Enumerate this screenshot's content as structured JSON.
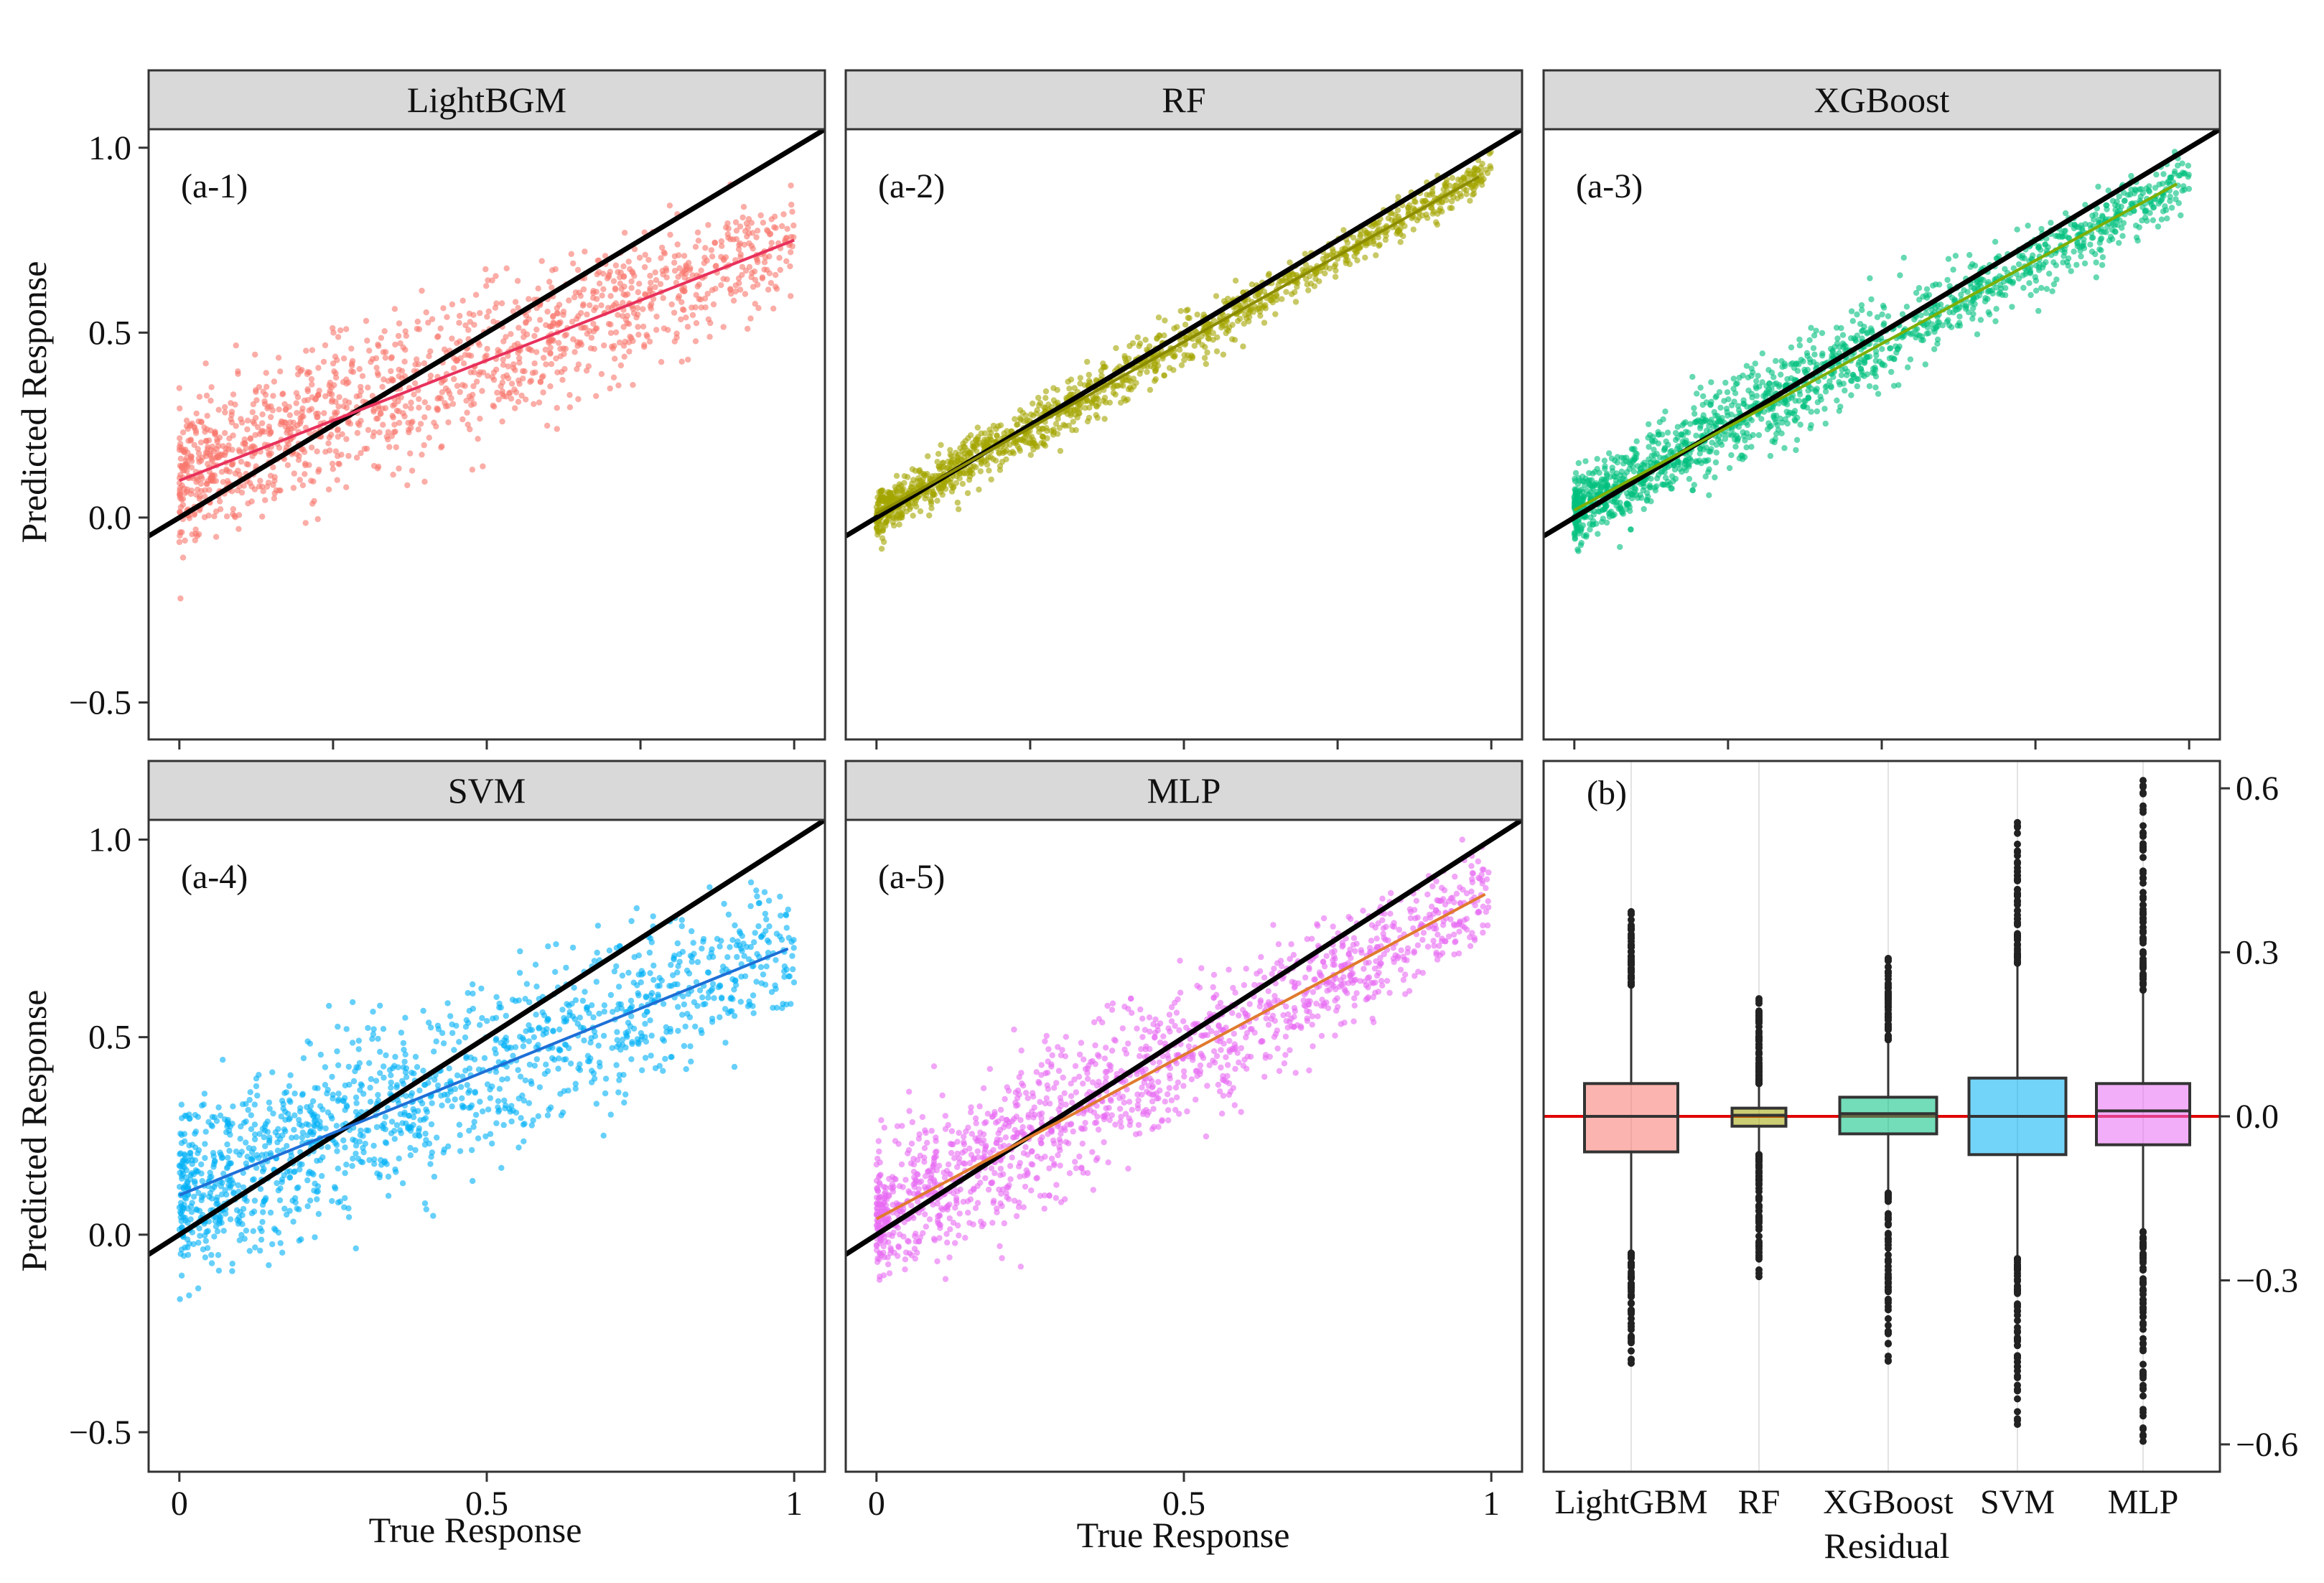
{
  "figure": {
    "x_axis_title": "True Response",
    "y_axis_title": "Predicted Response",
    "residual_axis_title": "Residual"
  },
  "chart_data": [
    {
      "type": "scatter",
      "strip_title": "LightBGM",
      "tag": "(a-1)",
      "color": "#F8766D",
      "fit_color": "#E8315C",
      "xlabel": "True Response",
      "ylabel": "Predicted Response",
      "xlim": [
        -0.05,
        1.05
      ],
      "ylim": [
        -0.6,
        1.05
      ],
      "x_ticks": [
        0,
        0.25,
        0.5,
        0.75,
        1
      ],
      "x_tick_labels": [
        "",
        "",
        "",
        "",
        ""
      ],
      "y_ticks": [
        -0.5,
        0,
        0.5,
        1.0
      ],
      "y_tick_labels": [
        "−0.5",
        "0.0",
        "0.5",
        "1.0"
      ],
      "identity_line": {
        "slope": 1,
        "intercept": 0
      },
      "fit_line": {
        "slope": 0.65,
        "intercept": 0.1,
        "x_range": [
          0,
          1
        ]
      },
      "points": {
        "n": 1400,
        "noise_sd": 0.09
      },
      "grid": false
    },
    {
      "type": "scatter",
      "strip_title": "RF",
      "tag": "(a-2)",
      "color": "#A3A500",
      "fit_color": "#8C8C00",
      "xlabel": "True Response",
      "ylabel": "Predicted Response",
      "xlim": [
        -0.05,
        1.05
      ],
      "ylim": [
        -0.6,
        1.05
      ],
      "x_ticks": [
        0,
        0.25,
        0.5,
        0.75,
        1
      ],
      "x_tick_labels": [
        "",
        "",
        "",
        "",
        ""
      ],
      "y_ticks": [
        -0.5,
        0,
        0.5,
        1.0
      ],
      "y_tick_labels": [
        "",
        "",
        "",
        ""
      ],
      "identity_line": {
        "slope": 1,
        "intercept": 0
      },
      "fit_line": {
        "slope": 0.93,
        "intercept": 0.01,
        "x_range": [
          0,
          0.98
        ]
      },
      "points": {
        "n": 1400,
        "noise_sd": 0.03
      },
      "grid": false
    },
    {
      "type": "scatter",
      "strip_title": "XGBoost",
      "tag": "(a-3)",
      "color": "#00BF7D",
      "fit_color": "#7CAE00",
      "xlabel": "True Response",
      "ylabel": "Predicted Response",
      "xlim": [
        -0.05,
        1.05
      ],
      "ylim": [
        -0.6,
        1.05
      ],
      "x_ticks": [
        0,
        0.25,
        0.5,
        0.75,
        1
      ],
      "x_tick_labels": [
        "",
        "",
        "",
        "",
        ""
      ],
      "y_ticks": [
        -0.5,
        0,
        0.5,
        1.0
      ],
      "y_tick_labels": [
        "",
        "",
        "",
        ""
      ],
      "identity_line": {
        "slope": 1,
        "intercept": 0
      },
      "fit_line": {
        "slope": 0.9,
        "intercept": 0.02,
        "x_range": [
          0,
          0.98
        ]
      },
      "points": {
        "n": 1600,
        "noise_sd": 0.05
      },
      "grid": false
    },
    {
      "type": "scatter",
      "strip_title": "SVM",
      "tag": "(a-4)",
      "color": "#00B0F6",
      "fit_color": "#1E6FD6",
      "xlabel": "True Response",
      "ylabel": "Predicted Response",
      "xlim": [
        -0.05,
        1.05
      ],
      "ylim": [
        -0.6,
        1.05
      ],
      "x_ticks": [
        0,
        0.5,
        1
      ],
      "x_tick_labels": [
        "0",
        "0.5",
        "1"
      ],
      "y_ticks": [
        -0.5,
        0,
        0.5,
        1.0
      ],
      "y_tick_labels": [
        "−0.5",
        "0.0",
        "0.5",
        "1.0"
      ],
      "identity_line": {
        "slope": 1,
        "intercept": 0
      },
      "fit_line": {
        "slope": 0.63,
        "intercept": 0.1,
        "x_range": [
          0,
          0.99
        ]
      },
      "points": {
        "n": 1400,
        "noise_sd": 0.1
      },
      "grid": false
    },
    {
      "type": "scatter",
      "strip_title": "MLP",
      "tag": "(a-5)",
      "color": "#E76BF3",
      "fit_color": "#E07A2E",
      "xlabel": "True Response",
      "ylabel": "Predicted Response",
      "xlim": [
        -0.05,
        1.05
      ],
      "ylim": [
        -0.6,
        1.05
      ],
      "x_ticks": [
        0,
        0.5,
        1
      ],
      "x_tick_labels": [
        "0",
        "0.5",
        "1"
      ],
      "y_ticks": [
        -0.5,
        0,
        0.5,
        1.0
      ],
      "y_tick_labels": [
        "",
        "",
        "",
        ""
      ],
      "identity_line": {
        "slope": 1,
        "intercept": 0
      },
      "fit_line": {
        "slope": 0.83,
        "intercept": 0.04,
        "x_range": [
          0,
          0.99
        ]
      },
      "points": {
        "n": 1500,
        "noise_sd": 0.08
      },
      "grid": false
    },
    {
      "type": "box",
      "tag": "(b)",
      "xlabel": "Residual",
      "ylim": [
        -0.65,
        0.65
      ],
      "y_ticks": [
        -0.6,
        -0.3,
        0.0,
        0.3,
        0.6
      ],
      "y_tick_labels": [
        "−0.6",
        "−0.3",
        "0.0",
        "0.3",
        "0.6"
      ],
      "y_axis_side": "right",
      "reference_line": {
        "y": 0,
        "color": "#E00000"
      },
      "categories": [
        "LightGBM",
        "RF",
        "XGBoost",
        "SVM",
        "MLP"
      ],
      "boxes": [
        {
          "name": "LightGBM",
          "color": "#F8766D",
          "q1": -0.065,
          "median": 0.0,
          "q3": 0.06,
          "whisker_low": -0.25,
          "whisker_high": 0.24,
          "outlier_low": -0.46,
          "outlier_high": 0.38
        },
        {
          "name": "RF",
          "color": "#A3A500",
          "q1": -0.018,
          "median": 0.002,
          "q3": 0.015,
          "whisker_low": -0.07,
          "whisker_high": 0.06,
          "outlier_low": -0.3,
          "outlier_high": 0.22
        },
        {
          "name": "XGBoost",
          "color": "#00BF7D",
          "q1": -0.032,
          "median": 0.005,
          "q3": 0.035,
          "whisker_low": -0.14,
          "whisker_high": 0.14,
          "outlier_low": -0.45,
          "outlier_high": 0.29
        },
        {
          "name": "SVM",
          "color": "#00B0F6",
          "q1": -0.07,
          "median": 0.0,
          "q3": 0.07,
          "whisker_low": -0.26,
          "whisker_high": 0.28,
          "outlier_low": -0.59,
          "outlier_high": 0.56
        },
        {
          "name": "MLP",
          "color": "#E76BF3",
          "q1": -0.052,
          "median": 0.01,
          "q3": 0.06,
          "whisker_low": -0.21,
          "whisker_high": 0.23,
          "outlier_low": -0.6,
          "outlier_high": 0.62
        }
      ],
      "grid": "vertical"
    }
  ]
}
